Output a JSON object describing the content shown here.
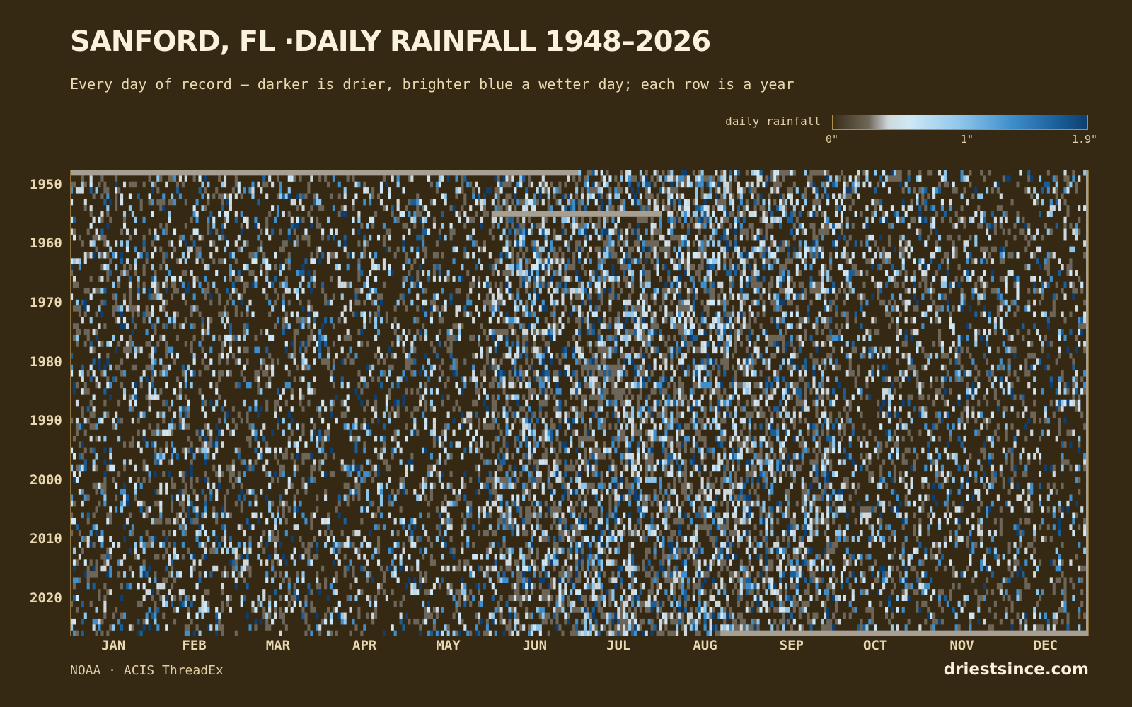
{
  "title": "SANFORD, FL ·DAILY RAINFALL 1948–2026",
  "subtitle": "Every day of record — darker is drier, brighter blue a wetter day; each row is a year",
  "legend": {
    "label": "daily rainfall",
    "ticks": [
      "0\"",
      "1\"",
      "1.9\""
    ],
    "tick_values": [
      0,
      1,
      1.9
    ],
    "colors": [
      "#3a2d17",
      "#6e6659",
      "#cfd9dd",
      "#cfe8f7",
      "#8fc6ea",
      "#3f8fcd",
      "#1b5f99",
      "#0e3f70"
    ]
  },
  "footer": {
    "source": "NOAA · ACIS ThreadEx",
    "brand": "driestsince.com"
  },
  "colors": {
    "background": "#352914",
    "dry_cell": "#352914",
    "missing_data": "#a79f91",
    "frame": "#8d7440",
    "text": "#e9d8b0"
  },
  "chart_data": {
    "type": "heatmap",
    "title": "SANFORD, FL ·DAILY RAINFALL 1948–2026",
    "x_axis": {
      "unit": "day of year",
      "range": [
        1,
        365
      ],
      "tick_labels": [
        "JAN",
        "FEB",
        "MAR",
        "APR",
        "MAY",
        "JUN",
        "JUL",
        "AUG",
        "SEP",
        "OCT",
        "NOV",
        "DEC"
      ],
      "tick_days": [
        16,
        45,
        75,
        106,
        136,
        167,
        197,
        228,
        259,
        289,
        320,
        350
      ]
    },
    "y_axis": {
      "unit": "year",
      "range": [
        1948,
        2026
      ],
      "tick_labels": [
        "1950",
        "1960",
        "1970",
        "1980",
        "1990",
        "2000",
        "2010",
        "2020"
      ],
      "tick_values": [
        1950,
        1960,
        1970,
        1980,
        1990,
        2000,
        2010,
        2020
      ]
    },
    "value_unit": "inches",
    "value_range": [
      0,
      1.9
    ],
    "missing_periods": [
      {
        "year": 1948,
        "from_day": 1,
        "to_day": 182
      },
      {
        "year": 1955,
        "from_day": 152,
        "to_day": 212
      },
      {
        "year": 2026,
        "from_day": 234,
        "to_day": 365
      }
    ],
    "monthly_wet_day_share": [
      0.3,
      0.3,
      0.3,
      0.26,
      0.3,
      0.5,
      0.55,
      0.55,
      0.48,
      0.33,
      0.3,
      0.28
    ],
    "grid": false,
    "legend_position": "top-right"
  }
}
